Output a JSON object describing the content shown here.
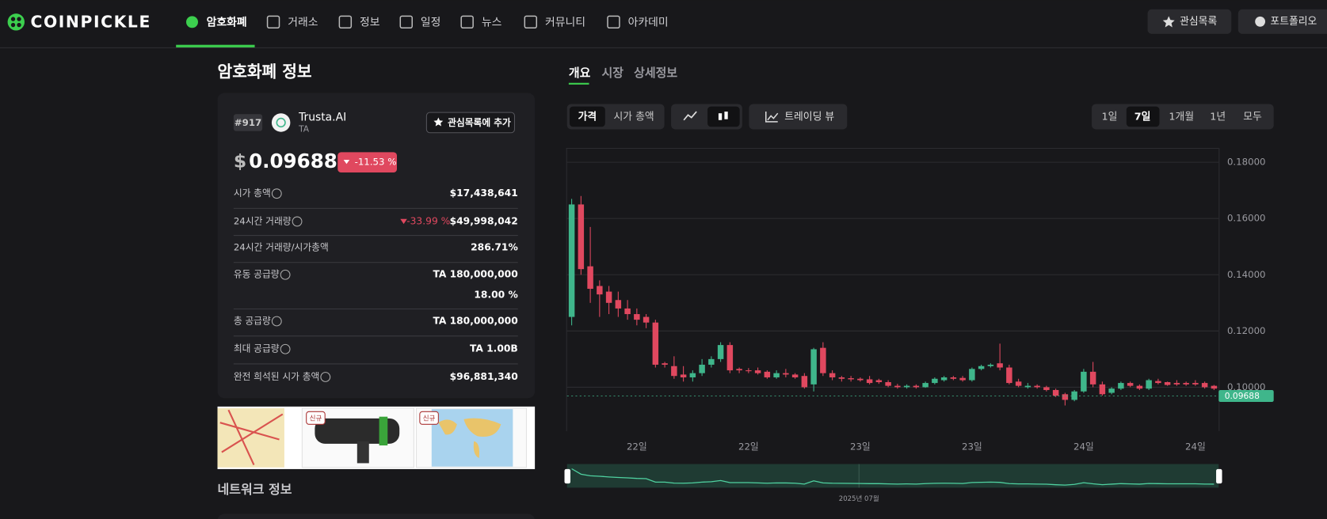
{
  "header": {
    "logo": "COINPICKLE",
    "nav": [
      "암호화폐",
      "거래소",
      "정보",
      "일정",
      "뉴스",
      "커뮤니티",
      "아카데미"
    ],
    "buttons": [
      "관심목록",
      "포트폴리오"
    ]
  },
  "info": {
    "title": "암호화폐 정보",
    "rank": "#917",
    "name": "Trusta.AI",
    "symbol": "TA",
    "watch_button": "관심목록에 추가",
    "currency": "$",
    "price": "0.09688",
    "change": "-11.53 %",
    "rows": [
      {
        "label": "시가 총액",
        "value": "$17,438,641"
      },
      {
        "label": "24시간 거래량",
        "change": "-33.99 %",
        "value": "$49,998,042"
      },
      {
        "label": "24시간 거래량/시가총액",
        "value": "286.71%"
      },
      {
        "label": "유동 공급량",
        "value": "TA 180,000,000",
        "share": "18.00 %"
      },
      {
        "label": "총 공급량",
        "value": "TA 180,000,000"
      },
      {
        "label": "최대 공급량",
        "value": "TA 1.00B"
      },
      {
        "label": "완전 희석된 시가 총액",
        "value": "$96,881,340"
      }
    ],
    "ad_badges": [
      "신규",
      "신규"
    ],
    "network_title": "네트워크 정보"
  },
  "tabs": [
    "개요",
    "시장",
    "상세정보"
  ],
  "controls": {
    "mode": [
      "가격",
      "시가 총액"
    ],
    "trading_view": "트레이딩 뷰",
    "ranges": [
      "1일",
      "7일",
      "1개월",
      "1년",
      "모두"
    ]
  },
  "chart_data": {
    "type": "candlestick",
    "categories": [
      null,
      null,
      null,
      null,
      null,
      null,
      null,
      "22일",
      null,
      null,
      null,
      null,
      null,
      null,
      null,
      null,
      null,
      null,
      null,
      "22일",
      null,
      null,
      null,
      null,
      null,
      null,
      null,
      null,
      null,
      null,
      null,
      "23일",
      null,
      null,
      null,
      null,
      null,
      null,
      null,
      null,
      null,
      null,
      null,
      "23일",
      null,
      null,
      null,
      null,
      null,
      null,
      null,
      null,
      null,
      null,
      null,
      "24일",
      null,
      null,
      null,
      null,
      null,
      null,
      null,
      null,
      null,
      null,
      null,
      "24일",
      null,
      null
    ],
    "candles": {
      "open": [
        0.125,
        0.165,
        0.143,
        0.136,
        0.134,
        0.131,
        0.128,
        0.126,
        0.125,
        0.123,
        0.1085,
        0.1075,
        0.1045,
        0.1035,
        0.105,
        0.108,
        0.11,
        0.115,
        0.1065,
        0.106,
        0.106,
        0.1055,
        0.1035,
        0.105,
        0.1045,
        0.104,
        0.101,
        0.114,
        0.105,
        0.1035,
        0.1032,
        0.103,
        0.1028,
        0.1025,
        0.1018,
        0.1005,
        0.1,
        0.1005,
        0.1,
        0.1015,
        0.1025,
        0.1035,
        0.1033,
        0.1025,
        0.1065,
        0.1075,
        0.1085,
        0.107,
        0.102,
        0.1,
        0.1005,
        0.1,
        0.099,
        0.0975,
        0.0955,
        0.0985,
        0.1055,
        0.101,
        0.098,
        0.0995,
        0.1015,
        0.1005,
        0.0995,
        0.1022,
        0.1018,
        0.1015,
        0.1015,
        0.1015,
        0.1015,
        0.1005
      ],
      "high": [
        0.167,
        0.168,
        0.157,
        0.138,
        0.136,
        0.134,
        0.131,
        0.128,
        0.126,
        0.124,
        0.109,
        0.111,
        0.1075,
        0.106,
        0.11,
        0.111,
        0.116,
        0.116,
        0.107,
        0.1068,
        0.107,
        0.106,
        0.106,
        0.1065,
        0.105,
        0.105,
        0.114,
        0.116,
        0.106,
        0.104,
        0.104,
        0.1035,
        0.104,
        0.103,
        0.1025,
        0.1012,
        0.101,
        0.101,
        0.102,
        0.1035,
        0.104,
        0.104,
        0.104,
        0.107,
        0.108,
        0.1085,
        0.1155,
        0.108,
        0.103,
        0.1015,
        0.101,
        0.1005,
        0.0995,
        0.098,
        0.099,
        0.1065,
        0.109,
        0.102,
        0.1,
        0.102,
        0.102,
        0.101,
        0.103,
        0.103,
        0.102,
        0.1025,
        0.102,
        0.1025,
        0.102,
        0.1008
      ],
      "low": [
        0.122,
        0.14,
        0.13,
        0.125,
        0.126,
        0.125,
        0.124,
        0.122,
        0.121,
        0.107,
        0.107,
        0.103,
        0.102,
        0.102,
        0.104,
        0.107,
        0.109,
        0.105,
        0.105,
        0.105,
        0.1045,
        0.103,
        0.103,
        0.1035,
        0.103,
        0.0995,
        0.0985,
        0.104,
        0.1025,
        0.102,
        0.102,
        0.102,
        0.101,
        0.1012,
        0.1,
        0.0995,
        0.0995,
        0.0995,
        0.0998,
        0.101,
        0.102,
        0.1025,
        0.102,
        0.102,
        0.106,
        0.107,
        0.106,
        0.101,
        0.1,
        0.0995,
        0.0995,
        0.0985,
        0.0965,
        0.0935,
        0.095,
        0.098,
        0.1,
        0.097,
        0.0975,
        0.099,
        0.1,
        0.099,
        0.099,
        0.101,
        0.1005,
        0.1005,
        0.1005,
        0.1005,
        0.0995,
        0.099
      ],
      "close": [
        0.165,
        0.142,
        0.135,
        0.133,
        0.13,
        0.128,
        0.126,
        0.124,
        0.123,
        0.108,
        0.108,
        0.104,
        0.1035,
        0.105,
        0.108,
        0.11,
        0.115,
        0.106,
        0.106,
        0.1058,
        0.105,
        0.1035,
        0.105,
        0.1045,
        0.1035,
        0.1,
        0.1135,
        0.105,
        0.1035,
        0.103,
        0.1028,
        0.1025,
        0.1015,
        0.1018,
        0.1005,
        0.1,
        0.1005,
        0.1,
        0.1015,
        0.103,
        0.1035,
        0.103,
        0.1025,
        0.1065,
        0.1075,
        0.108,
        0.107,
        0.1015,
        0.1005,
        0.1005,
        0.1,
        0.099,
        0.097,
        0.0955,
        0.0985,
        0.1055,
        0.101,
        0.0975,
        0.0995,
        0.1015,
        0.1005,
        0.0995,
        0.1025,
        0.1015,
        0.1008,
        0.101,
        0.101,
        0.101,
        0.1,
        0.0995
      ]
    },
    "up_color": "#3fb68b",
    "down_color": "#e0485f",
    "ylim": [
      0.0844,
      0.1851
    ],
    "yticks": [
      {
        "value": 0.1,
        "label": "0.10000"
      },
      {
        "value": 0.12,
        "label": "0.12000"
      },
      {
        "value": 0.14,
        "label": "0.14000"
      },
      {
        "value": 0.16,
        "label": "0.16000"
      },
      {
        "value": 0.18,
        "label": "0.18000"
      }
    ],
    "grid": true,
    "last_price": 0.09688,
    "last_price_label": "0.09688",
    "navigator_label": "2025년 07월"
  }
}
